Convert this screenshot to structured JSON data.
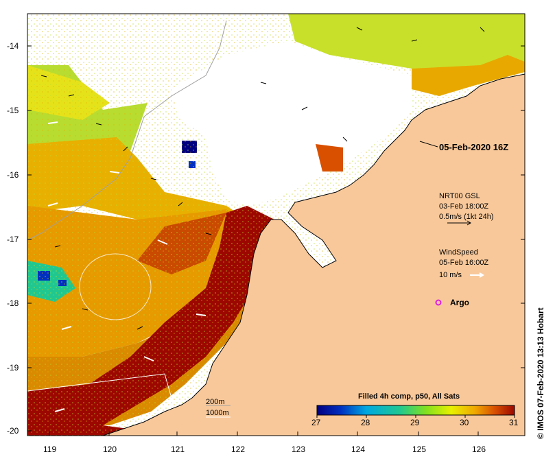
{
  "map": {
    "title": "05-Feb-2020 16Z",
    "current_annotation": {
      "product": "NRT00 GSL",
      "time": "03-Feb 18:00Z",
      "scale_text": "0.5m/s (1kt 24h)"
    },
    "wind_annotation": {
      "label": "WindSpeed",
      "time": "05-Feb 16:00Z",
      "scale_text": "10 m/s"
    },
    "argo_label": "Argo",
    "bathymetry": {
      "contour_1": "200m",
      "contour_2": "1000m"
    },
    "colorbar": {
      "title": "Filled 4h comp, p50, All Sats",
      "ticks": [
        "27",
        "28",
        "29",
        "30",
        "31"
      ]
    },
    "axes": {
      "lat_ticks": [
        "-14",
        "-15",
        "-16",
        "-17",
        "-18",
        "-19",
        "-20"
      ],
      "lon_ticks": [
        "119",
        "120",
        "121",
        "122",
        "123",
        "124",
        "125",
        "126"
      ]
    },
    "credit": "© IMOS 07-Feb-2020 13:13 Hobart",
    "colors": {
      "land": "#f8c89a",
      "hot": "#9c0800",
      "argo": "#e020e0"
    }
  }
}
